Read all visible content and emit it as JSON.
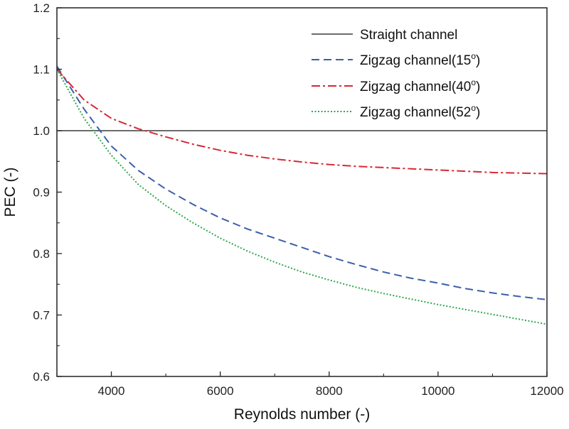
{
  "chart_data": {
    "type": "line",
    "xlabel": "Reynolds number (-)",
    "ylabel": "PEC (-)",
    "xlim": [
      3000,
      12000
    ],
    "ylim": [
      0.6,
      1.2
    ],
    "x_ticks": [
      4000,
      6000,
      8000,
      10000,
      12000
    ],
    "y_ticks": [
      0.6,
      0.7,
      0.8,
      0.9,
      1.0,
      1.1,
      1.2
    ],
    "y_tick_labels": [
      "0.6",
      "0.7",
      "0.8",
      "0.9",
      "1.0",
      "1.1",
      "1.2"
    ],
    "grid": false,
    "legend_position": "top-right",
    "x": [
      3000,
      3500,
      4000,
      4500,
      5000,
      5500,
      6000,
      6500,
      7000,
      7500,
      8000,
      8500,
      9000,
      9500,
      10000,
      10500,
      11000,
      11500,
      12000
    ],
    "series": [
      {
        "name": "Straight channel",
        "color": "#3a3a3a",
        "dash": "solid",
        "values": [
          1.0,
          1.0,
          1.0,
          1.0,
          1.0,
          1.0,
          1.0,
          1.0,
          1.0,
          1.0,
          1.0,
          1.0,
          1.0,
          1.0,
          1.0,
          1.0,
          1.0,
          1.0,
          1.0
        ]
      },
      {
        "name": "Zigzag channel(15",
        "name_sup": "o",
        "name_suffix": ")",
        "color": "#3c5fa8",
        "dash": "dashed",
        "values": [
          1.105,
          1.035,
          0.975,
          0.935,
          0.905,
          0.88,
          0.858,
          0.84,
          0.825,
          0.81,
          0.795,
          0.782,
          0.77,
          0.76,
          0.752,
          0.743,
          0.736,
          0.73,
          0.725
        ]
      },
      {
        "name": "Zigzag channel(40",
        "name_sup": "o",
        "name_suffix": ")",
        "color": "#d62836",
        "dash": "dashdot",
        "values": [
          1.1,
          1.05,
          1.02,
          1.003,
          0.99,
          0.978,
          0.968,
          0.96,
          0.954,
          0.949,
          0.945,
          0.942,
          0.94,
          0.938,
          0.936,
          0.934,
          0.932,
          0.931,
          0.93
        ]
      },
      {
        "name": "Zigzag channel(52",
        "name_sup": "o",
        "name_suffix": ")",
        "color": "#2ea84a",
        "dash": "dotted",
        "values": [
          1.1,
          1.02,
          0.96,
          0.912,
          0.878,
          0.85,
          0.825,
          0.804,
          0.786,
          0.77,
          0.757,
          0.745,
          0.735,
          0.726,
          0.717,
          0.709,
          0.701,
          0.693,
          0.685
        ]
      }
    ]
  }
}
